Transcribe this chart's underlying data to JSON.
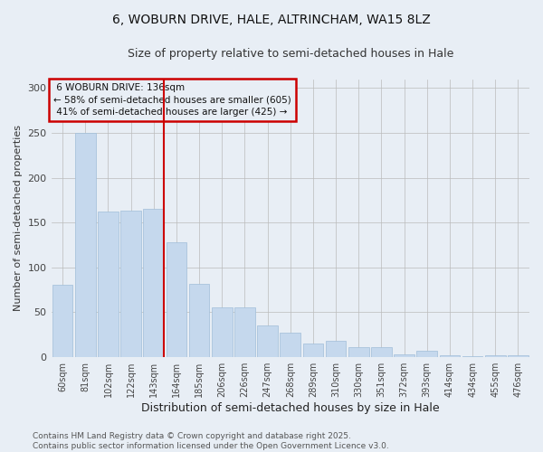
{
  "title": "6, WOBURN DRIVE, HALE, ALTRINCHAM, WA15 8LZ",
  "subtitle": "Size of property relative to semi-detached houses in Hale",
  "xlabel": "Distribution of semi-detached houses by size in Hale",
  "ylabel": "Number of semi-detached properties",
  "categories": [
    "60sqm",
    "81sqm",
    "102sqm",
    "122sqm",
    "143sqm",
    "164sqm",
    "185sqm",
    "206sqm",
    "226sqm",
    "247sqm",
    "268sqm",
    "289sqm",
    "310sqm",
    "330sqm",
    "351sqm",
    "372sqm",
    "393sqm",
    "414sqm",
    "434sqm",
    "455sqm",
    "476sqm"
  ],
  "values": [
    80,
    250,
    162,
    163,
    165,
    128,
    81,
    55,
    55,
    35,
    27,
    15,
    18,
    11,
    11,
    3,
    7,
    2,
    1,
    2,
    2
  ],
  "bar_color": "#c5d8ed",
  "bar_edge_color": "#a0bdd8",
  "property_label": "6 WOBURN DRIVE: 136sqm",
  "smaller_pct": "58%",
  "smaller_count": 605,
  "larger_pct": "41%",
  "larger_count": 425,
  "annotation_box_color": "#cc0000",
  "bg_color": "#e8eef5",
  "ylim": [
    0,
    310
  ],
  "yticks": [
    0,
    50,
    100,
    150,
    200,
    250,
    300
  ],
  "footer_line1": "Contains HM Land Registry data © Crown copyright and database right 2025.",
  "footer_line2": "Contains public sector information licensed under the Open Government Licence v3.0.",
  "title_fontsize": 10,
  "subtitle_fontsize": 9,
  "xlabel_fontsize": 9,
  "ylabel_fontsize": 8,
  "tick_fontsize": 7,
  "footer_fontsize": 6.5,
  "annot_fontsize": 7.5
}
